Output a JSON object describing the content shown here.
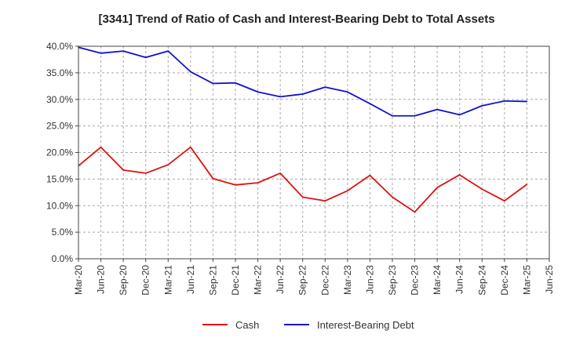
{
  "chart_data": {
    "type": "line",
    "title": "[3341]  Trend of Ratio of Cash and Interest-Bearing Debt to Total Assets",
    "xlabel": "",
    "ylabel": "",
    "categories": [
      "Mar-20",
      "Jun-20",
      "Sep-20",
      "Dec-20",
      "Mar-21",
      "Jun-21",
      "Sep-21",
      "Dec-21",
      "Mar-22",
      "Jun-22",
      "Sep-22",
      "Dec-22",
      "Mar-23",
      "Jun-23",
      "Sep-23",
      "Dec-23",
      "Mar-24",
      "Jun-24",
      "Sep-24",
      "Dec-24",
      "Mar-25",
      "Jun-25"
    ],
    "ylim": [
      0,
      40
    ],
    "yticks": [
      0,
      5,
      10,
      15,
      20,
      25,
      30,
      35,
      40
    ],
    "ytick_labels": [
      "0.0%",
      "5.0%",
      "10.0%",
      "15.0%",
      "20.0%",
      "25.0%",
      "30.0%",
      "35.0%",
      "40.0%"
    ],
    "grid": true,
    "legend_position": "bottom",
    "series": [
      {
        "name": "Cash",
        "color": "#e01010",
        "values": [
          17.5,
          21.0,
          16.7,
          16.1,
          17.7,
          21.0,
          15.1,
          13.9,
          14.3,
          16.1,
          11.6,
          10.9,
          12.8,
          15.7,
          11.6,
          8.8,
          13.4,
          15.8,
          13.1,
          10.9,
          14.0,
          null
        ]
      },
      {
        "name": "Interest-Bearing Debt",
        "color": "#1010d0",
        "values": [
          39.8,
          38.7,
          39.1,
          37.9,
          39.1,
          35.2,
          33.0,
          33.1,
          31.4,
          30.5,
          31.0,
          32.3,
          31.4,
          29.2,
          26.9,
          26.9,
          28.1,
          27.1,
          28.8,
          29.7,
          29.6,
          null
        ]
      }
    ]
  }
}
